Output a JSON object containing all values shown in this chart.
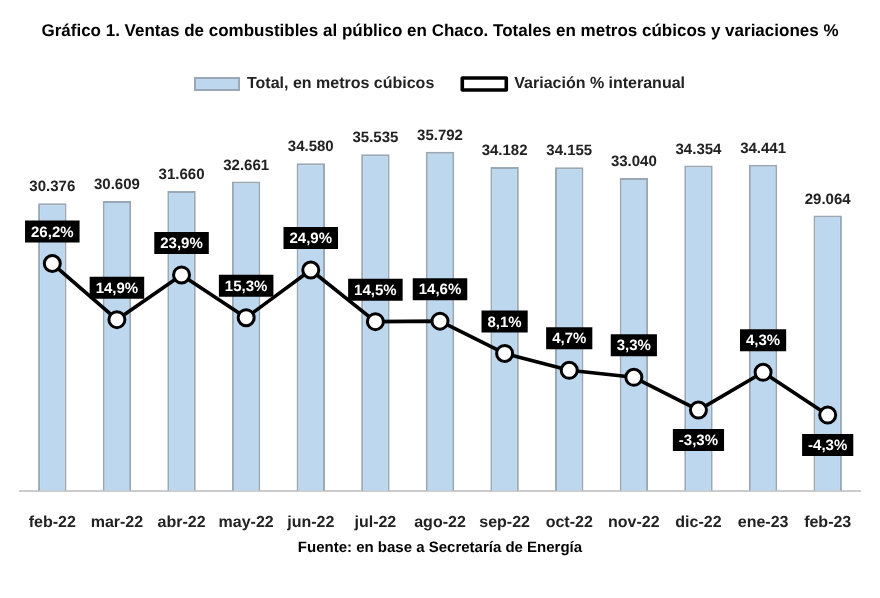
{
  "chart_data": {
    "type": "bar",
    "title": "Gráfico 1. Ventas de combustibles al público en Chaco. Totales en metros cúbicos y variaciones %",
    "categories": [
      "feb-22",
      "mar-22",
      "abr-22",
      "may-22",
      "jun-22",
      "jul-22",
      "ago-22",
      "sep-22",
      "oct-22",
      "nov-22",
      "dic-22",
      "ene-23",
      "feb-23"
    ],
    "series": [
      {
        "name": "Total, en metros cúbicos",
        "color": "#bdd7ee",
        "values": [
          30376,
          30609,
          31660,
          32661,
          34580,
          35535,
          35792,
          34182,
          34155,
          33040,
          34354,
          34441,
          29064
        ],
        "value_labels": [
          "30.376",
          "30.609",
          "31.660",
          "32.661",
          "34.580",
          "35.535",
          "35.792",
          "34.182",
          "34.155",
          "33.040",
          "34.354",
          "34.441",
          "29.064"
        ]
      },
      {
        "name": "Variación % interanual",
        "type": "line",
        "axis": "y2",
        "color": "#000000",
        "values": [
          26.2,
          14.9,
          23.9,
          15.3,
          24.9,
          14.5,
          14.6,
          8.1,
          4.7,
          3.3,
          -3.3,
          4.3,
          -4.3
        ],
        "value_labels": [
          "26,2%",
          "14,9%",
          "23,9%",
          "15,3%",
          "24,9%",
          "14,5%",
          "14,6%",
          "8,1%",
          "4,7%",
          "3,3%",
          "-3,3%",
          "4,3%",
          "-4,3%"
        ]
      }
    ],
    "tick_labels": "x",
    "grid": false,
    "legend": "top",
    "marker": "circle",
    "line_style": "solid",
    "annotations": [
      "Fuente: en base a Secretaría de Energía"
    ]
  }
}
